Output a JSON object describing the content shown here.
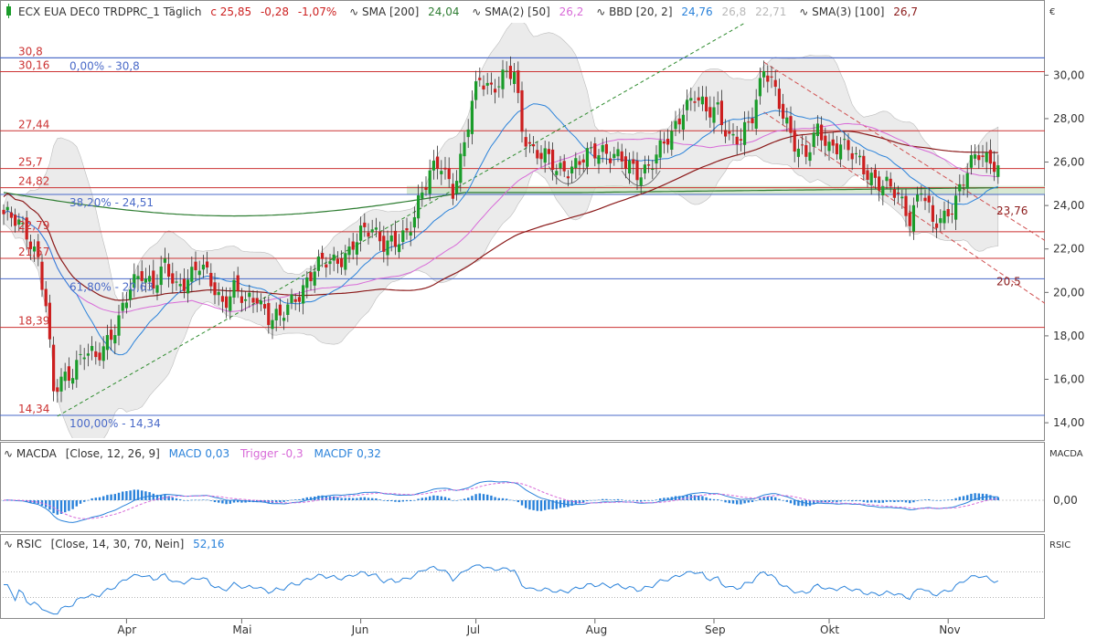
{
  "currency_symbol": "€",
  "main_header": {
    "icon": "candlestick-icon",
    "instrument": "ECX EUA DEC0 TRDPRC_1 Täglich",
    "close_label": "c 25,85",
    "change": "-0,28",
    "change_pct": "-1,07%",
    "sma200_label": "SMA [200]",
    "sma200_value": "24,04",
    "sma2_label": "SMA(2) [50]",
    "sma2_value": "26,2",
    "bbd_label": "BBD [20, 2]",
    "bbd_mid": "24,76",
    "bbd_upper": "26,8",
    "bbd_lower": "22,71",
    "sma3_label": "SMA(3) [100]",
    "sma3_value": "26,7"
  },
  "macd_header": {
    "name": "MACDA",
    "params": "[Close, 12, 26, 9]",
    "macd": "MACD 0,03",
    "trigger": "Trigger -0,3",
    "macdf": "MACDF 0,32",
    "axis_title": "MACDA",
    "zero_label": "0,00"
  },
  "rsi_header": {
    "name": "RSIC",
    "params": "[Close, 14, 30, 70, Nein]",
    "value": "52,16",
    "axis_title": "RSIC"
  },
  "colors": {
    "up": "#1a9c2a",
    "down": "#cc1f1f",
    "sma200": "#2e7d32",
    "sma50": "#d86ad8",
    "bb_mid": "#2a82da",
    "bb_fill": "#e2e2e2",
    "sma100": "#8b1a1a",
    "level": "#cc3333",
    "fib": "#4a6ac8",
    "trend": "#2e8b2e",
    "channel": "#d05050",
    "zone": "#c8e0c0"
  },
  "chart_data": {
    "type": "candlestick",
    "ylim": [
      13.5,
      32.2
    ],
    "y_ticks": [
      14,
      16,
      18,
      20,
      22,
      24,
      26,
      28,
      30
    ],
    "y_tick_labels": [
      "14,00",
      "16,00",
      "18,00",
      "20,00",
      "22,00",
      "24,00",
      "26,00",
      "28,00",
      "30,00"
    ],
    "x_ticks": [
      {
        "label": "Apr",
        "day": 32
      },
      {
        "label": "Mai",
        "day": 62
      },
      {
        "label": "Jun",
        "day": 93
      },
      {
        "label": "Jul",
        "day": 123
      },
      {
        "label": "Aug",
        "day": 154
      },
      {
        "label": "Sep",
        "day": 185
      },
      {
        "label": "Okt",
        "day": 215
      },
      {
        "label": "Nov",
        "day": 246
      }
    ],
    "horizontal_levels": [
      {
        "value": 30.8,
        "label": "30,8",
        "kind": "fib"
      },
      {
        "value": 30.16,
        "label": "30,16",
        "kind": "resistance"
      },
      {
        "value": 27.44,
        "label": "27,44",
        "kind": "resistance"
      },
      {
        "value": 25.7,
        "label": "25,7",
        "kind": "resistance"
      },
      {
        "value": 24.82,
        "label": "24,82",
        "kind": "resistance"
      },
      {
        "value": 22.79,
        "label": "22,79",
        "kind": "resistance"
      },
      {
        "value": 21.57,
        "label": "21,57",
        "kind": "resistance"
      },
      {
        "value": 18.39,
        "label": "18,39",
        "kind": "resistance"
      },
      {
        "value": 14.34,
        "label": "14,34",
        "kind": "fib"
      }
    ],
    "fib_levels": [
      {
        "value": 30.8,
        "label": "0,00% - 30,8"
      },
      {
        "value": 24.51,
        "label": "38,20% - 24,51"
      },
      {
        "value": 20.63,
        "label": "61,80% - 20,63"
      },
      {
        "value": 14.34,
        "label": "100,00% - 14,34"
      }
    ],
    "channel_labels": [
      {
        "value": 23.76,
        "label": "23,76"
      },
      {
        "value": 20.5,
        "label": "20,5"
      }
    ],
    "ohlc_anchors": [
      {
        "day": 0,
        "close": 23.6
      },
      {
        "day": 3,
        "close": 23.2
      },
      {
        "day": 6,
        "close": 22.8
      },
      {
        "day": 9,
        "close": 21.6
      },
      {
        "day": 11,
        "close": 19.3
      },
      {
        "day": 13,
        "close": 15.3
      },
      {
        "day": 15,
        "close": 16.0
      },
      {
        "day": 18,
        "close": 16.5
      },
      {
        "day": 21,
        "close": 17.2
      },
      {
        "day": 24,
        "close": 16.9
      },
      {
        "day": 27,
        "close": 17.9
      },
      {
        "day": 30,
        "close": 18.7
      },
      {
        "day": 33,
        "close": 20.1
      },
      {
        "day": 36,
        "close": 21.0
      },
      {
        "day": 39,
        "close": 20.4
      },
      {
        "day": 42,
        "close": 21.1
      },
      {
        "day": 45,
        "close": 20.2
      },
      {
        "day": 48,
        "close": 20.8
      },
      {
        "day": 51,
        "close": 21.2
      },
      {
        "day": 54,
        "close": 20.4
      },
      {
        "day": 57,
        "close": 19.6
      },
      {
        "day": 60,
        "close": 20.2
      },
      {
        "day": 63,
        "close": 19.4
      },
      {
        "day": 66,
        "close": 19.9
      },
      {
        "day": 69,
        "close": 18.9
      },
      {
        "day": 72,
        "close": 18.7
      },
      {
        "day": 75,
        "close": 19.6
      },
      {
        "day": 78,
        "close": 20.3
      },
      {
        "day": 81,
        "close": 21.0
      },
      {
        "day": 84,
        "close": 21.4
      },
      {
        "day": 87,
        "close": 21.6
      },
      {
        "day": 90,
        "close": 21.8
      },
      {
        "day": 93,
        "close": 22.6
      },
      {
        "day": 96,
        "close": 23.1
      },
      {
        "day": 99,
        "close": 22.3
      },
      {
        "day": 102,
        "close": 22.1
      },
      {
        "day": 105,
        "close": 22.7
      },
      {
        "day": 108,
        "close": 24.3
      },
      {
        "day": 111,
        "close": 25.4
      },
      {
        "day": 114,
        "close": 25.8
      },
      {
        "day": 117,
        "close": 24.8
      },
      {
        "day": 120,
        "close": 26.8
      },
      {
        "day": 122,
        "close": 28.6
      },
      {
        "day": 124,
        "close": 29.8
      },
      {
        "day": 127,
        "close": 29.5
      },
      {
        "day": 130,
        "close": 29.9
      },
      {
        "day": 133,
        "close": 30.0
      },
      {
        "day": 135,
        "close": 27.5
      },
      {
        "day": 138,
        "close": 26.6
      },
      {
        "day": 141,
        "close": 26.2
      },
      {
        "day": 144,
        "close": 25.6
      },
      {
        "day": 147,
        "close": 25.8
      },
      {
        "day": 150,
        "close": 26.0
      },
      {
        "day": 153,
        "close": 26.3
      },
      {
        "day": 156,
        "close": 26.6
      },
      {
        "day": 159,
        "close": 26.4
      },
      {
        "day": 162,
        "close": 25.8
      },
      {
        "day": 165,
        "close": 25.5
      },
      {
        "day": 168,
        "close": 25.9
      },
      {
        "day": 171,
        "close": 26.5
      },
      {
        "day": 174,
        "close": 27.2
      },
      {
        "day": 177,
        "close": 28.6
      },
      {
        "day": 180,
        "close": 29.0
      },
      {
        "day": 183,
        "close": 28.2
      },
      {
        "day": 186,
        "close": 28.6
      },
      {
        "day": 189,
        "close": 27.1
      },
      {
        "day": 192,
        "close": 26.9
      },
      {
        "day": 195,
        "close": 28.2
      },
      {
        "day": 198,
        "close": 30.5
      },
      {
        "day": 200,
        "close": 29.6
      },
      {
        "day": 203,
        "close": 28.0
      },
      {
        "day": 206,
        "close": 27.0
      },
      {
        "day": 209,
        "close": 26.4
      },
      {
        "day": 212,
        "close": 27.3
      },
      {
        "day": 215,
        "close": 26.7
      },
      {
        "day": 218,
        "close": 27.0
      },
      {
        "day": 221,
        "close": 26.3
      },
      {
        "day": 224,
        "close": 25.6
      },
      {
        "day": 227,
        "close": 25.3
      },
      {
        "day": 230,
        "close": 24.9
      },
      {
        "day": 233,
        "close": 24.3
      },
      {
        "day": 236,
        "close": 23.5
      },
      {
        "day": 239,
        "close": 24.9
      },
      {
        "day": 242,
        "close": 23.0
      },
      {
        "day": 245,
        "close": 23.5
      },
      {
        "day": 248,
        "close": 24.4
      },
      {
        "day": 251,
        "close": 25.5
      },
      {
        "day": 254,
        "close": 26.4
      },
      {
        "day": 257,
        "close": 26.2
      },
      {
        "day": 259,
        "close": 25.85
      }
    ],
    "rsi_levels": [
      30,
      70
    ]
  }
}
